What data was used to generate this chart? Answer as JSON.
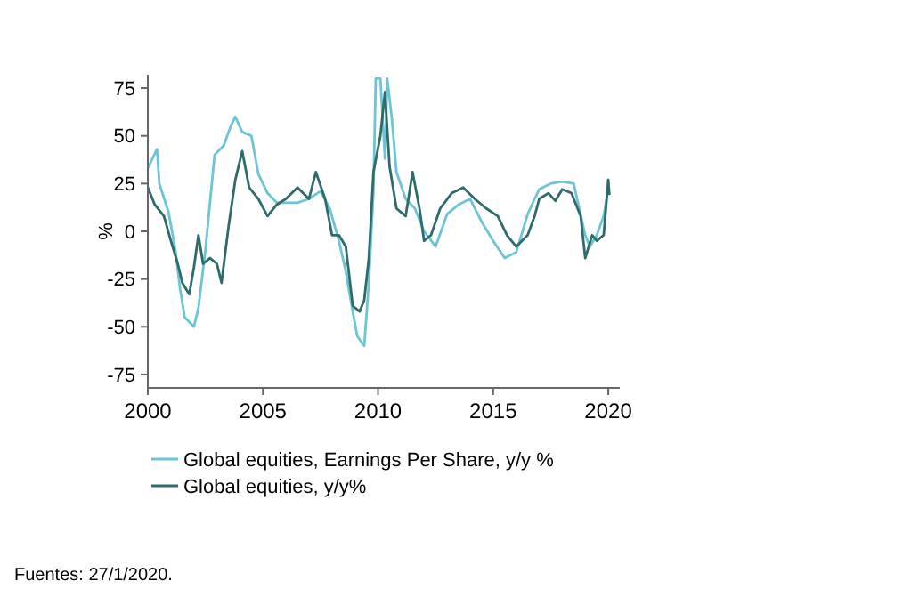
{
  "chart_data": {
    "type": "line",
    "ylabel": "%",
    "xlim": [
      2000,
      2020.5
    ],
    "xticks": [
      2000,
      2005,
      2010,
      2015,
      2020
    ],
    "ylim": [
      -82,
      82
    ],
    "yticks": [
      {
        "value": 75,
        "label": "75"
      },
      {
        "value": 50,
        "label": "50"
      },
      {
        "value": 25,
        "label": "25"
      },
      {
        "value": 0,
        "label": "0"
      },
      {
        "value": -25,
        "label": "-25"
      },
      {
        "value": -50,
        "label": "-50"
      },
      {
        "value": -75,
        "label": "-75"
      }
    ],
    "grid": false,
    "legend": "bottom",
    "line_style": "solid",
    "marker": "none",
    "series": [
      {
        "name": "Global equities, Earnings Per Share, y/y %",
        "color": "#6cc5d6",
        "x": [
          2000,
          2000.4,
          2000.5,
          2000.9,
          2001.2,
          2001.4,
          2001.6,
          2002,
          2002.2,
          2002.5,
          2002.7,
          2002.9,
          2003.3,
          2003.6,
          2003.8,
          2004.1,
          2004.5,
          2004.8,
          2005.2,
          2005.6,
          2006,
          2006.5,
          2007,
          2007.5,
          2007.9,
          2008.3,
          2008.6,
          2008.9,
          2009.1,
          2009.4,
          2009.6,
          2009.8,
          2009.9,
          2010.1,
          2010.3,
          2010.4,
          2010.6,
          2010.8,
          2011.2,
          2011.6,
          2012,
          2012.5,
          2013,
          2013.5,
          2014,
          2014.5,
          2015,
          2015.5,
          2016,
          2016.5,
          2016.8,
          2017,
          2017.5,
          2018,
          2018.5,
          2018.7,
          2019,
          2019.2,
          2019.5,
          2019.8,
          2020
        ],
        "values": [
          33,
          43,
          25,
          10,
          -10,
          -30,
          -45,
          -50,
          -40,
          -10,
          15,
          40,
          45,
          55,
          60,
          52,
          50,
          30,
          20,
          15,
          15,
          15,
          17,
          21,
          12,
          -5,
          -21,
          -42,
          -55,
          -60,
          -27,
          21,
          80,
          80,
          38,
          80,
          59,
          31,
          17,
          12,
          0,
          -8,
          9,
          14,
          17,
          5,
          -5,
          -14,
          -11,
          9,
          17,
          22,
          25,
          26,
          25,
          14,
          -2,
          -8,
          -2,
          8,
          23
        ]
      },
      {
        "name": "Global equities, y/y%",
        "color": "#2e6b6b",
        "x": [
          2000,
          2000.3,
          2000.7,
          2001,
          2001.3,
          2001.5,
          2001.8,
          2002,
          2002.2,
          2002.4,
          2002.7,
          2003,
          2003.2,
          2003.5,
          2003.8,
          2004.1,
          2004.4,
          2004.8,
          2005.2,
          2005.6,
          2006,
          2006.5,
          2007,
          2007.3,
          2007.7,
          2008,
          2008.3,
          2008.6,
          2008.9,
          2009.2,
          2009.4,
          2009.6,
          2009.8,
          2010.1,
          2010.3,
          2010.5,
          2010.8,
          2011.2,
          2011.5,
          2011.8,
          2012,
          2012.3,
          2012.7,
          2013.2,
          2013.7,
          2014.2,
          2014.7,
          2015.2,
          2015.6,
          2016,
          2016.5,
          2016.8,
          2017,
          2017.4,
          2017.7,
          2018,
          2018.4,
          2018.8,
          2019,
          2019.3,
          2019.5,
          2019.8,
          2020,
          2020.05
        ],
        "values": [
          23,
          14,
          8,
          -5,
          -17,
          -27,
          -33,
          -19,
          -2,
          -17,
          -14,
          -17,
          -27,
          2,
          27,
          42,
          23,
          17,
          8,
          14,
          17,
          23,
          17,
          31,
          17,
          -2,
          -2,
          -8,
          -39,
          -42,
          -36,
          -14,
          31,
          50,
          73,
          34,
          12,
          8,
          31,
          12,
          -5,
          -2,
          12,
          20,
          23,
          17,
          12,
          8,
          -2,
          -8,
          -2,
          8,
          17,
          20,
          16,
          22,
          20,
          8,
          -14,
          -2,
          -5,
          -2,
          27,
          19
        ]
      }
    ],
    "annotations": [
      "Fuentes: 27/1/2020."
    ]
  }
}
